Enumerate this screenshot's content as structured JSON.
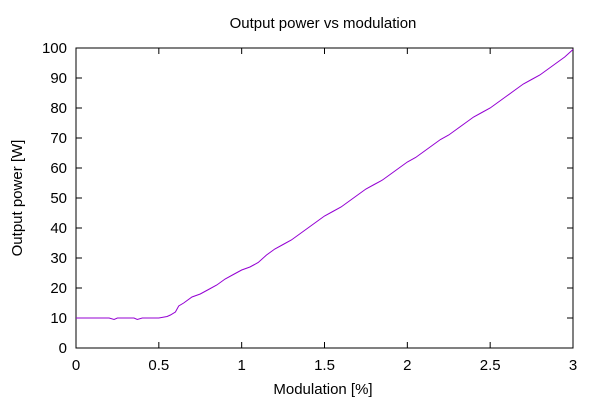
{
  "chart_data": {
    "type": "line",
    "title": "Output power vs modulation",
    "xlabel": "Modulation [%]",
    "ylabel": "Output power [W]",
    "xlim": [
      0,
      3
    ],
    "ylim": [
      0,
      100
    ],
    "xticks": [
      0,
      0.5,
      1,
      1.5,
      2,
      2.5,
      3
    ],
    "xtick_labels": [
      "0",
      "0.5",
      "1",
      "1.5",
      "2",
      "2.5",
      "3"
    ],
    "yticks": [
      0,
      10,
      20,
      30,
      40,
      50,
      60,
      70,
      80,
      90,
      100
    ],
    "ytick_labels": [
      "0",
      "10",
      "20",
      "30",
      "40",
      "50",
      "60",
      "70",
      "80",
      "90",
      "100"
    ],
    "grid": false,
    "legend": "none",
    "colors": {
      "line": "#9400d3",
      "axes": "#000000"
    },
    "series": [
      {
        "x": [
          0,
          0.05,
          0.1,
          0.15,
          0.2,
          0.23,
          0.25,
          0.3,
          0.35,
          0.37,
          0.4,
          0.45,
          0.5,
          0.55,
          0.57,
          0.6,
          0.62,
          0.65,
          0.7,
          0.75,
          0.8,
          0.85,
          0.9,
          0.95,
          1.0,
          1.05,
          1.1,
          1.15,
          1.2,
          1.25,
          1.3,
          1.35,
          1.4,
          1.45,
          1.5,
          1.55,
          1.6,
          1.65,
          1.7,
          1.75,
          1.8,
          1.85,
          1.9,
          1.95,
          2.0,
          2.05,
          2.1,
          2.15,
          2.2,
          2.25,
          2.3,
          2.35,
          2.4,
          2.45,
          2.5,
          2.55,
          2.6,
          2.65,
          2.7,
          2.75,
          2.8,
          2.85,
          2.9,
          2.95,
          3.0
        ],
        "y": [
          10,
          10,
          10,
          10,
          10,
          9.5,
          10,
          10,
          10,
          9.5,
          10,
          10,
          10,
          10.5,
          11,
          12,
          14,
          15,
          17,
          18,
          19.5,
          21,
          23,
          24.5,
          26,
          27,
          28.5,
          31,
          33,
          34.5,
          36,
          38,
          40,
          42,
          44,
          45.5,
          47,
          49,
          51,
          53,
          54.5,
          56,
          58,
          60,
          62,
          63.5,
          65.5,
          67.5,
          69.5,
          71,
          73,
          75,
          77,
          78.5,
          80,
          82,
          84,
          86,
          88,
          89.5,
          91,
          93,
          95,
          97,
          99.5
        ]
      }
    ]
  }
}
